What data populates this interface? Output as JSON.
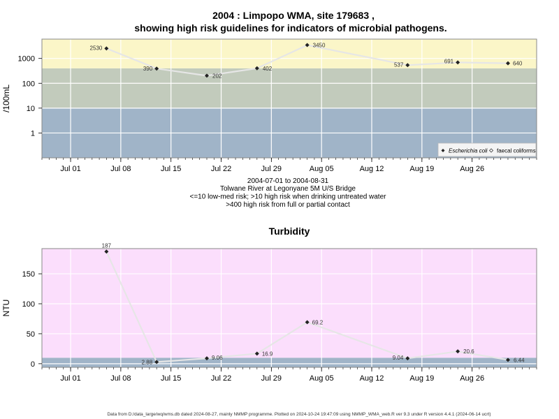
{
  "page": {
    "title_line1": "2004 : Limpopo WMA, site 179683 ,",
    "title_line2": "showing high risk guidelines for indicators of microbial pathogens.",
    "subtitle_lines": [
      "2004-07-01 to 2004-08-31",
      "Tolwane River at Legonyane 5M U/S Bridge",
      "<=10 low-med risk; >10 high risk when drinking untreated water",
      ">400 high risk from full or partial contact"
    ],
    "footer": "Data from D:/data_large/wq/wms.db dated 2024-08-27, mainly NMMP programme. Plotted on 2024-10-24 19:47:09 using NMMP_WMA_web.R ver 9.3 under R version 4.4.1 (2024-06-14 ucrt)"
  },
  "chart_data": [
    {
      "type": "line",
      "title": "2004 : Limpopo WMA, site 179683 , showing high risk guidelines for indicators of microbial pathogens.",
      "ylabel": "/100mL",
      "y_scale": "log",
      "ylim": [
        0.1,
        6000
      ],
      "yticks": [
        1,
        10,
        100,
        1000
      ],
      "ytick_labels": [
        "1",
        "10",
        "100",
        "1000"
      ],
      "xlim": [
        "2004-06-27",
        "2004-09-04"
      ],
      "xticks": [
        "2004-07-01",
        "2004-07-08",
        "2004-07-15",
        "2004-07-22",
        "2004-07-29",
        "2004-08-05",
        "2004-08-12",
        "2004-08-19",
        "2004-08-26"
      ],
      "xtick_labels": [
        "Jul 01",
        "Jul 08",
        "Jul 15",
        "Jul 22",
        "Jul 29",
        "Aug 05",
        "Aug 12",
        "Aug 19",
        "Aug 26"
      ],
      "grid": true,
      "bands": [
        {
          "from": 0.1,
          "to": 10,
          "color": "#a0b4c8"
        },
        {
          "from": 10,
          "to": 400,
          "color": "#c2cbbc"
        },
        {
          "from": 400,
          "to": 6000,
          "color": "#fbf6c8"
        }
      ],
      "legend_position": "bottom-right",
      "legend": [
        {
          "label": "Escherichia coli",
          "marker": "filled-diamond",
          "italic": true
        },
        {
          "label": "faecal coliforms",
          "marker": "open-diamond",
          "italic": false
        }
      ],
      "series": [
        {
          "name": "Escherichia coli",
          "color": "#e6e6e6",
          "points": [
            {
              "x": "2004-07-06",
              "y": 2530,
              "label": "2530"
            },
            {
              "x": "2004-07-13",
              "y": 390,
              "label": "390"
            },
            {
              "x": "2004-07-20",
              "y": 202,
              "label": "202"
            },
            {
              "x": "2004-07-27",
              "y": 402,
              "label": "402"
            },
            {
              "x": "2004-08-03",
              "y": 3450,
              "label": "3450"
            },
            {
              "x": "2004-08-17",
              "y": 537,
              "label": "537"
            },
            {
              "x": "2004-08-24",
              "y": 691,
              "label": "691"
            },
            {
              "x": "2004-08-31",
              "y": 640,
              "label": "640"
            }
          ]
        }
      ]
    },
    {
      "type": "line",
      "title": "Turbidity",
      "ylabel": "NTU",
      "y_scale": "linear",
      "ylim": [
        -6,
        192
      ],
      "yticks": [
        0,
        50,
        100,
        150
      ],
      "ytick_labels": [
        "0",
        "50",
        "100",
        "150"
      ],
      "xlim": [
        "2004-06-27",
        "2004-09-04"
      ],
      "xticks": [
        "2004-07-01",
        "2004-07-08",
        "2004-07-15",
        "2004-07-22",
        "2004-07-29",
        "2004-08-05",
        "2004-08-12",
        "2004-08-19",
        "2004-08-26"
      ],
      "xtick_labels": [
        "Jul 01",
        "Jul 08",
        "Jul 15",
        "Jul 22",
        "Jul 29",
        "Aug 05",
        "Aug 12",
        "Aug 19",
        "Aug 26"
      ],
      "grid": true,
      "bands": [
        {
          "from": -6,
          "to": 10,
          "color": "#a0b4c8"
        },
        {
          "from": 10,
          "to": 192,
          "color": "#fbdefc"
        }
      ],
      "series": [
        {
          "name": "",
          "color": "#e6e6e6",
          "points": [
            {
              "x": "2004-07-06",
              "y": 187,
              "label": "187"
            },
            {
              "x": "2004-07-13",
              "y": 2.88,
              "label": "2.88"
            },
            {
              "x": "2004-07-20",
              "y": 9.06,
              "label": "9.06"
            },
            {
              "x": "2004-07-27",
              "y": 16.9,
              "label": "16.9"
            },
            {
              "x": "2004-08-03",
              "y": 69.2,
              "label": "69.2"
            },
            {
              "x": "2004-08-17",
              "y": 9.04,
              "label": "9.04"
            },
            {
              "x": "2004-08-24",
              "y": 20.6,
              "label": "20.6"
            },
            {
              "x": "2004-08-31",
              "y": 6.44,
              "label": "6.44"
            }
          ]
        }
      ]
    }
  ]
}
